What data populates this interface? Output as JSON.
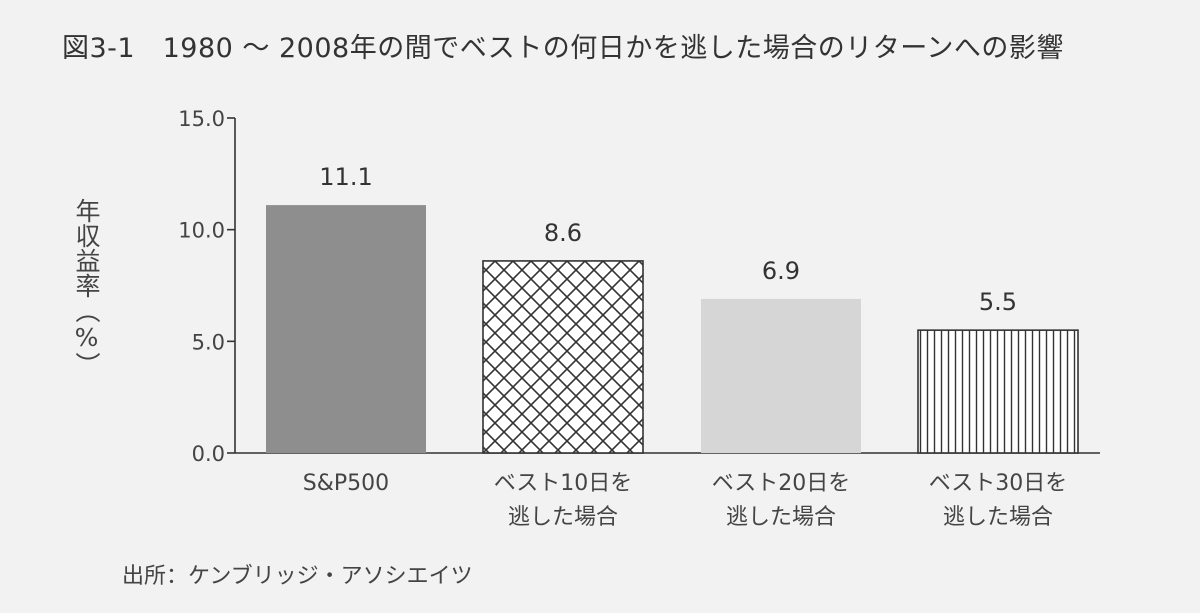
{
  "chart_data": {
    "type": "bar",
    "title": "図3-1　1980 ～ 2008年の間でベストの何日かを逃した場合のリターンへの影響",
    "ylabel": "年収益率（%）",
    "xlabel": "",
    "ylim": [
      0,
      15
    ],
    "yticks": [
      "0.0",
      "5.0",
      "10.0",
      "15.0"
    ],
    "grid": false,
    "categories": [
      [
        "S&P500"
      ],
      [
        "ベスト10日を",
        "逃した場合"
      ],
      [
        "ベスト20日を",
        "逃した場合"
      ],
      [
        "ベスト30日を",
        "逃した場合"
      ]
    ],
    "values": [
      11.1,
      8.6,
      6.9,
      5.5
    ],
    "value_labels": [
      "11.1",
      "8.6",
      "6.9",
      "5.5"
    ],
    "bar_fills": [
      "solid-dark-gray",
      "crosshatch",
      "solid-light-gray",
      "vertical-lines"
    ],
    "colors": {
      "dark_bar": "#8e8e8e",
      "light_bar": "#d6d6d6",
      "hatch": "#333333",
      "axis": "#333333"
    },
    "source": "出所：ケンブリッジ・アソシエイツ"
  }
}
